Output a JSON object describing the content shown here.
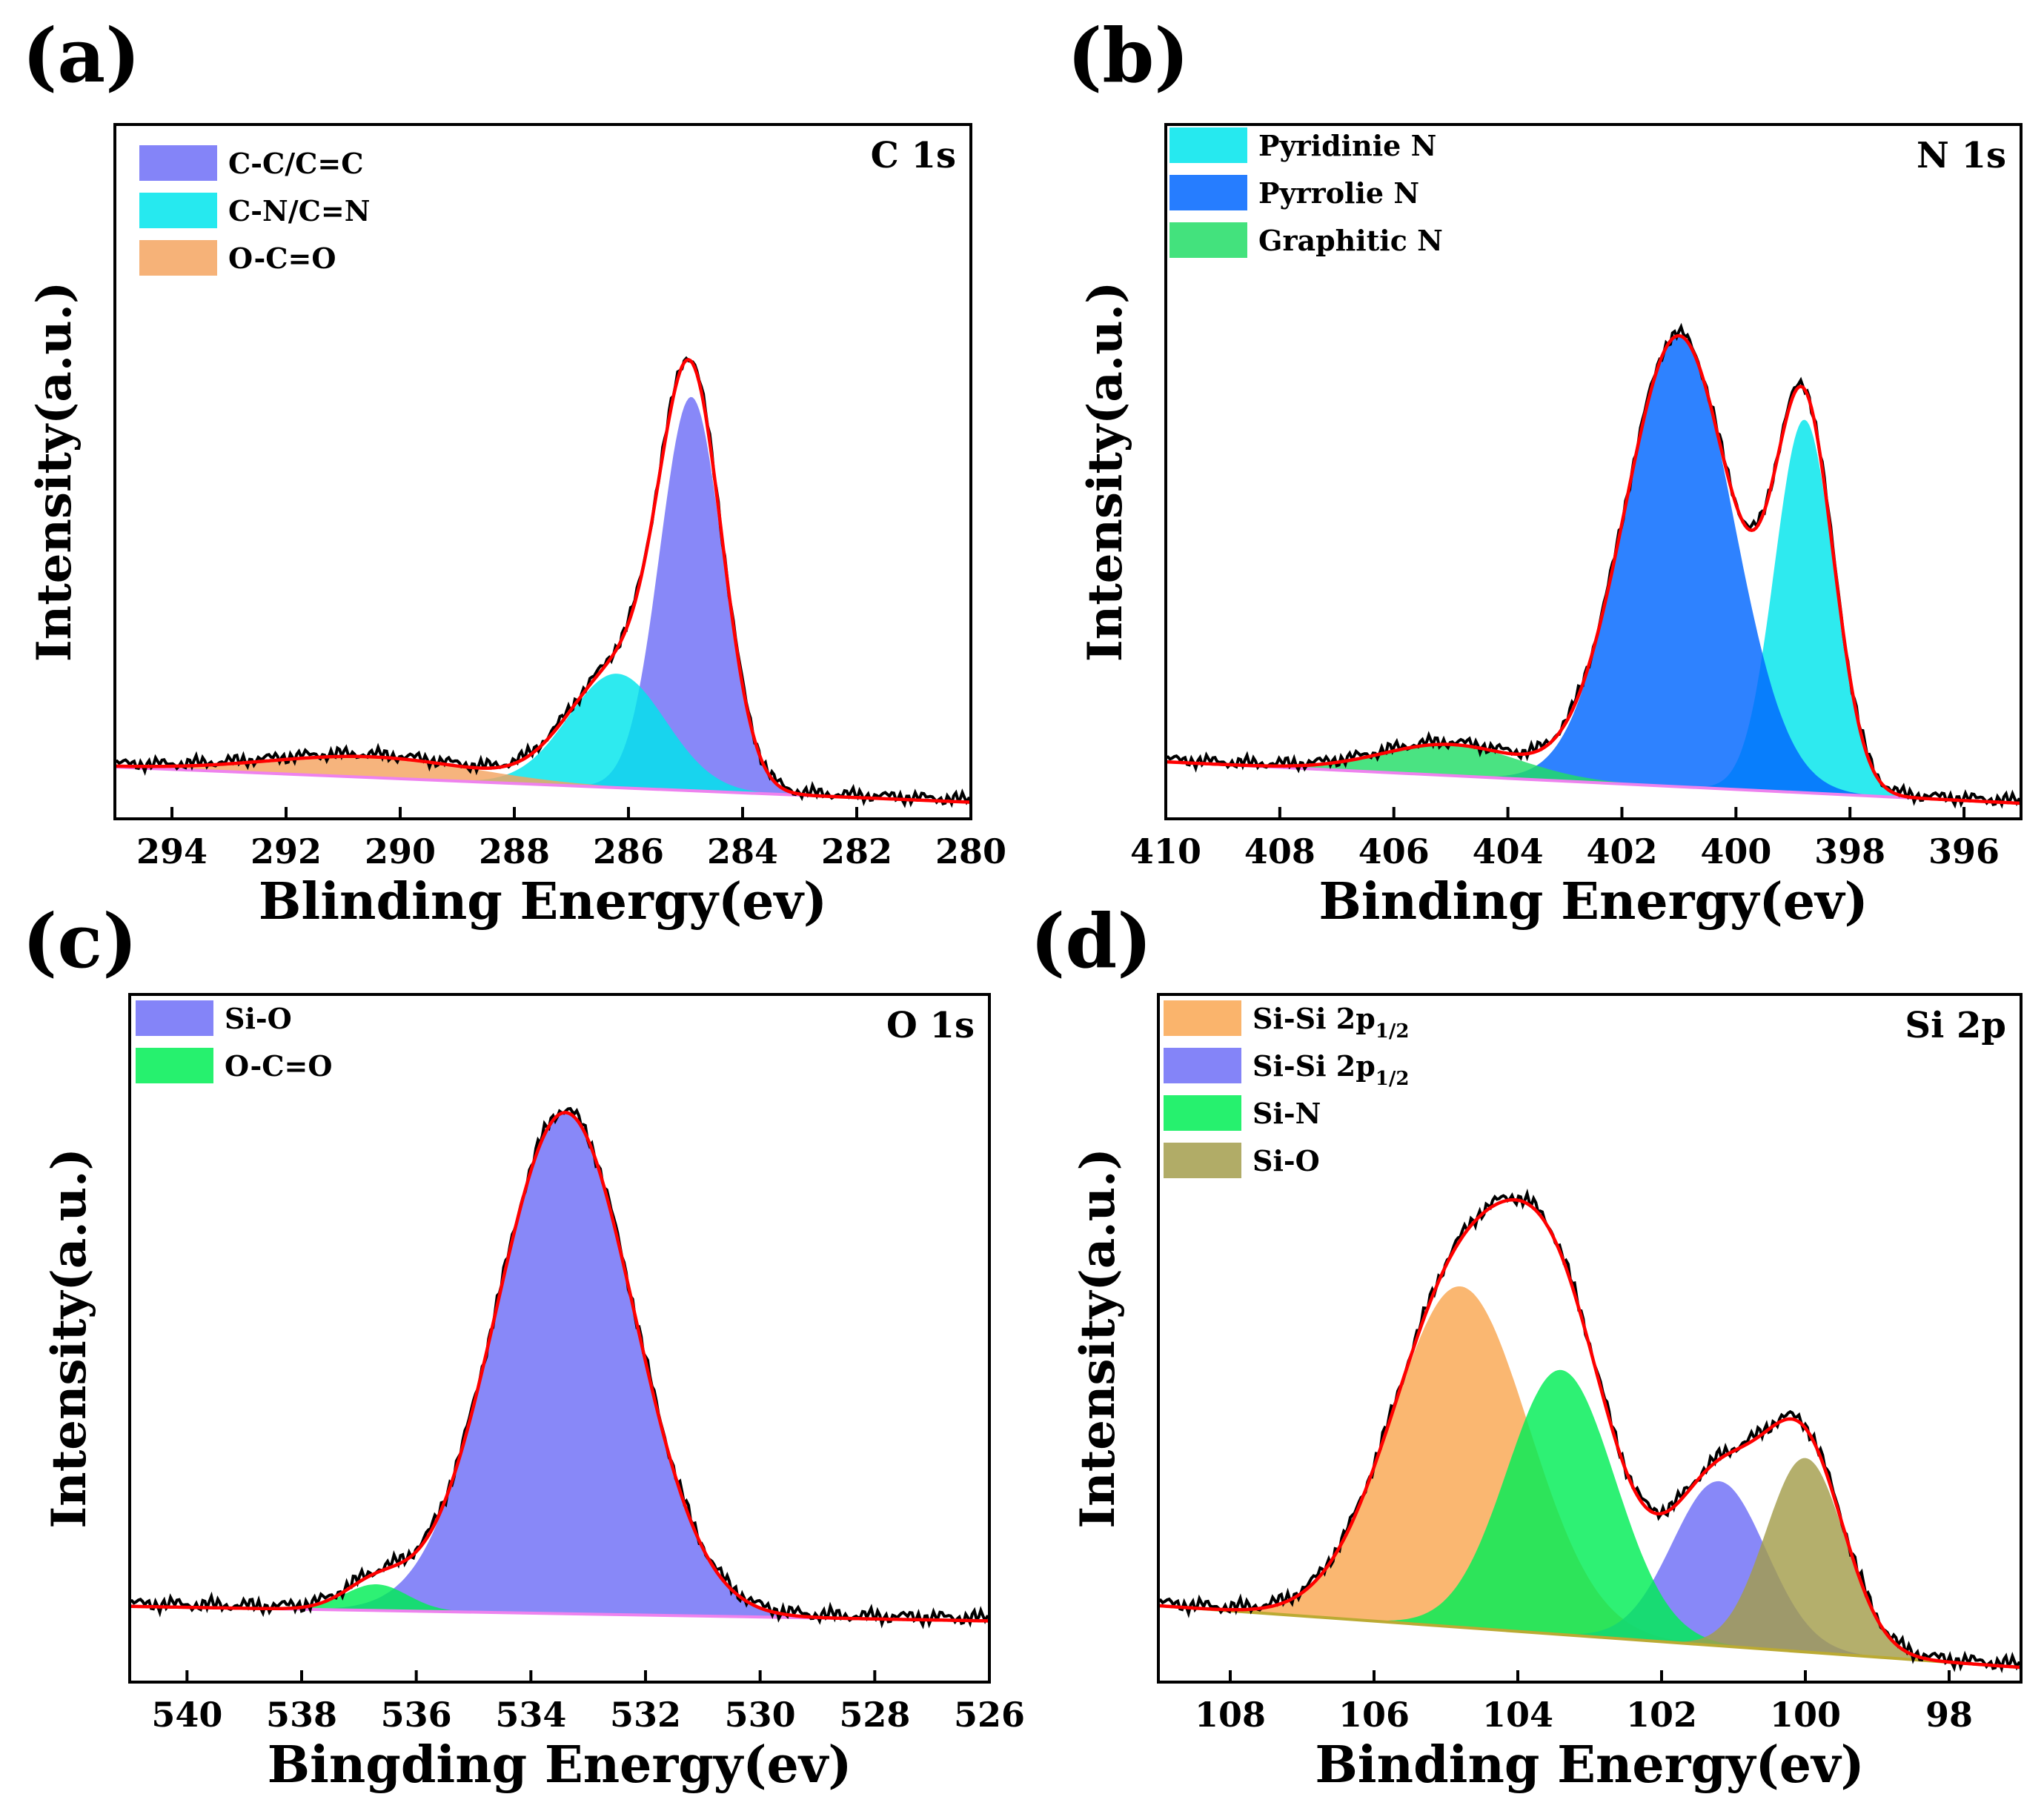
{
  "figure": {
    "background": "#ffffff"
  },
  "chart_data": [
    {
      "panel": "(a)",
      "type": "area",
      "title": "C 1s",
      "xlabel": "Blinding Energy(ev)",
      "ylabel": "Intensity(a.u.)",
      "xlim": [
        295,
        280
      ],
      "ylim": [
        -1.0,
        12.4
      ],
      "xticks": [
        294,
        292,
        290,
        288,
        286,
        284,
        282,
        280
      ],
      "baseline": {
        "x": [
          295,
          280
        ],
        "y": [
          0,
          -0.68
        ],
        "color": "#ee82ee"
      },
      "peaks": [
        {
          "name": "C-C/C=C",
          "center": 284.9,
          "height": 7.6,
          "width": 0.55,
          "color": "#6e6ef7"
        },
        {
          "name": "C-N/C=N",
          "center": 286.2,
          "height": 2.2,
          "width": 0.85,
          "color": "#00e5ec"
        },
        {
          "name": "O-C=O",
          "center": 290.5,
          "height": 0.4,
          "width": 1.8,
          "color": "#f4a460"
        }
      ],
      "raw_color": "#000000",
      "fit_color": "#ff0000"
    },
    {
      "panel": "(b)",
      "type": "area",
      "title": "N 1s",
      "xlabel": "Binding Energy(ev)",
      "ylabel": "Intensity(a.u.)",
      "xlim": [
        410,
        395
      ],
      "ylim": [
        -1.2,
        12.2
      ],
      "xticks": [
        410,
        408,
        406,
        404,
        402,
        400,
        398,
        396
      ],
      "baseline": {
        "x": [
          410,
          395
        ],
        "y": [
          -0.1,
          -0.9
        ],
        "color": "#ee82ee"
      },
      "peaks": [
        {
          "name": "Pyridinie N",
          "center": 398.8,
          "height": 7.2,
          "width": 0.52,
          "color": "#00e5ec"
        },
        {
          "name": "Pyrrolie N",
          "center": 401.0,
          "height": 8.7,
          "width": 0.95,
          "color": "#0066ff"
        },
        {
          "name": "Graphitic N",
          "center": 405.0,
          "height": 0.6,
          "width": 1.2,
          "color": "#22dd66"
        }
      ],
      "raw_color": "#000000",
      "fit_color": "#ff0000"
    },
    {
      "panel": "(c)",
      "type": "area",
      "title": "O 1s",
      "xlabel": "Bingding Energy(ev)",
      "ylabel": "Intensity(a.u.)",
      "xlim": [
        541,
        526
      ],
      "ylim": [
        -1.3,
        10.5
      ],
      "xticks": [
        540,
        538,
        536,
        534,
        532,
        530,
        528,
        526
      ],
      "baseline": {
        "x": [
          541,
          526
        ],
        "y": [
          0,
          -0.25
        ],
        "color": "#ee82ee"
      },
      "peaks": [
        {
          "name": "Si-O",
          "center": 533.4,
          "height": 8.6,
          "width": 1.2,
          "color": "#6e6ef7"
        },
        {
          "name": "O-C=O",
          "center": 536.7,
          "height": 0.45,
          "width": 0.55,
          "color": "#00ee55"
        }
      ],
      "raw_color": "#000000",
      "fit_color": "#ff0000"
    },
    {
      "panel": "(d)",
      "type": "area",
      "title": "Si 2p",
      "xlabel": "Binding Energy(ev)",
      "ylabel": "Intensity(a.u.)",
      "xlim": [
        109,
        97
      ],
      "ylim": [
        -1.3,
        10.4
      ],
      "xticks": [
        108,
        106,
        104,
        102,
        100,
        98
      ],
      "baseline": {
        "x": [
          109,
          97
        ],
        "y": [
          0,
          -1.05
        ],
        "color": "#bbaa33"
      },
      "peaks": [
        {
          "name": "Si-Si 2p1/2",
          "center": 104.8,
          "height": 5.8,
          "width": 0.95,
          "color": "#f9a752"
        },
        {
          "name": "Si-Si 2p1/2",
          "center": 101.2,
          "height": 2.8,
          "width": 0.65,
          "color": "#6e6ef7"
        },
        {
          "name": "Si-N",
          "center": 103.4,
          "height": 4.5,
          "width": 0.75,
          "color": "#00ee55"
        },
        {
          "name": "Si-O",
          "center": 100.0,
          "height": 3.3,
          "width": 0.55,
          "color": "#a39d4c"
        }
      ],
      "raw_color": "#000000",
      "fit_color": "#ff0000"
    }
  ],
  "legends": {
    "a": [
      {
        "label": "C-C/C=C"
      },
      {
        "label": "C-N/C=N"
      },
      {
        "label": "O-C=O"
      }
    ],
    "b": [
      {
        "label": "Pyridinie N"
      },
      {
        "label": "Pyrrolie N"
      },
      {
        "label": "Graphitic N"
      }
    ],
    "c": [
      {
        "label": "Si-O"
      },
      {
        "label": "O-C=O"
      }
    ],
    "d": [
      {
        "label": "Si-Si 2p",
        "sub": "1/2"
      },
      {
        "label": "Si-Si 2p",
        "sub": "1/2"
      },
      {
        "label": "Si-N"
      },
      {
        "label": "Si-O"
      }
    ]
  }
}
